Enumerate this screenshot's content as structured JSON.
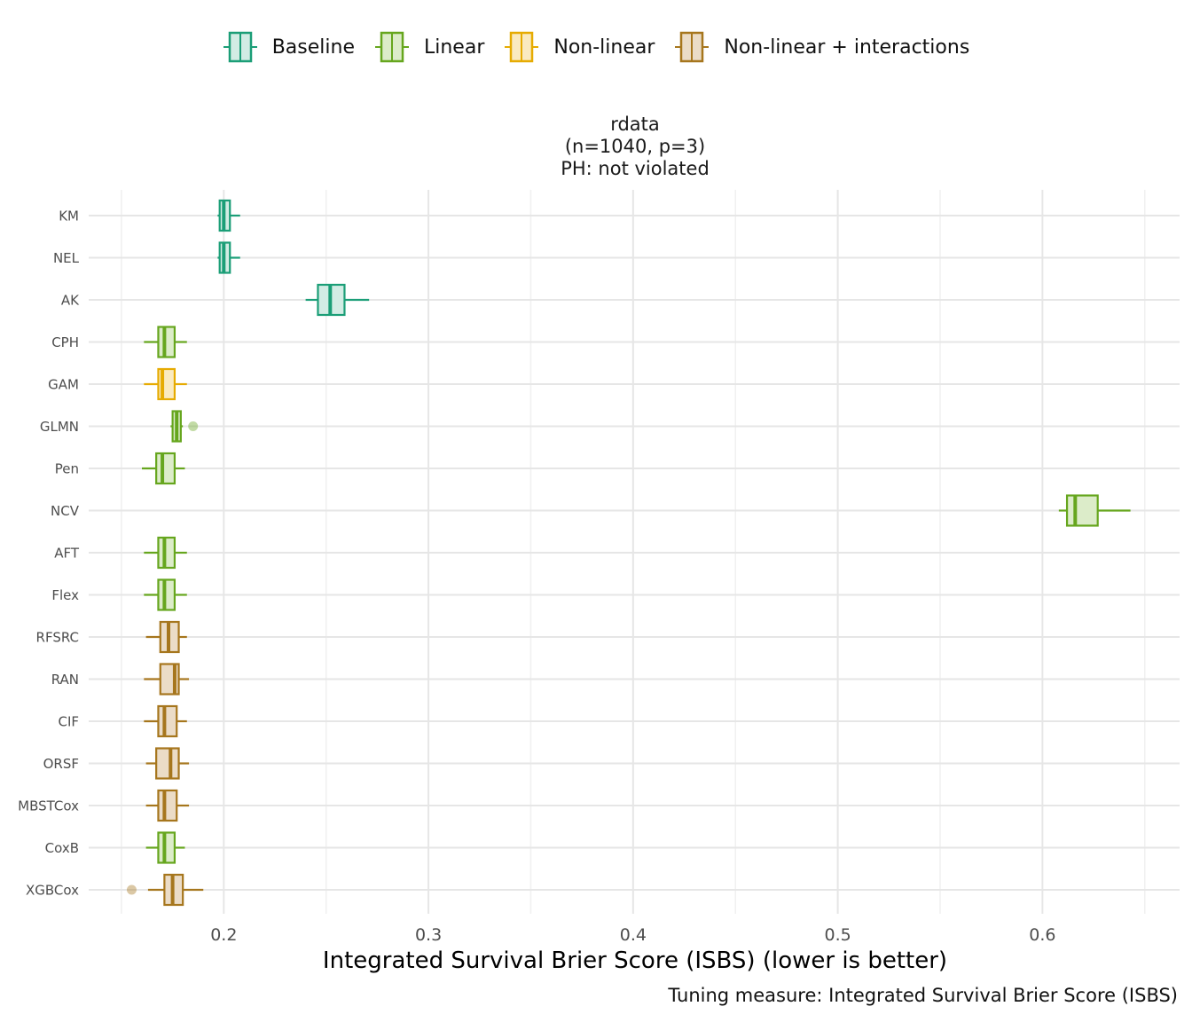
{
  "legend": {
    "items": [
      {
        "label": "Baseline",
        "color": "#1b9e77",
        "fill": "#d2ece4"
      },
      {
        "label": "Linear",
        "color": "#66a61e",
        "fill": "#dcecc9"
      },
      {
        "label": "Non-linear",
        "color": "#e6ab02",
        "fill": "#faeac0"
      },
      {
        "label": "Non-linear + interactions",
        "color": "#a6761d",
        "fill": "#ebdcc7"
      }
    ]
  },
  "facet": {
    "line1": "rdata",
    "line2": "(n=1040, p=3)",
    "line3": "PH: not violated"
  },
  "chart_data": {
    "type": "boxplot",
    "orientation": "horizontal",
    "xlabel": "Integrated Survival Brier Score (ISBS) (lower is better)",
    "caption": "Tuning measure: Integrated Survival Brier Score (ISBS)",
    "xlim": [
      0.134,
      0.667
    ],
    "xticks": [
      0.2,
      0.3,
      0.4,
      0.5,
      0.6
    ],
    "xtick_labels": [
      "0.2",
      "0.3",
      "0.4",
      "0.5",
      "0.6"
    ],
    "grid": true,
    "legend_position": "top",
    "series": [
      {
        "name": "KM",
        "group": "Baseline",
        "min": 0.197,
        "q1": 0.198,
        "median": 0.2,
        "q3": 0.203,
        "max": 0.208,
        "outliers": []
      },
      {
        "name": "NEL",
        "group": "Baseline",
        "min": 0.197,
        "q1": 0.198,
        "median": 0.2,
        "q3": 0.203,
        "max": 0.208,
        "outliers": []
      },
      {
        "name": "AK",
        "group": "Baseline",
        "min": 0.24,
        "q1": 0.246,
        "median": 0.252,
        "q3": 0.259,
        "max": 0.271,
        "outliers": []
      },
      {
        "name": "CPH",
        "group": "Linear",
        "min": 0.161,
        "q1": 0.168,
        "median": 0.171,
        "q3": 0.176,
        "max": 0.182,
        "outliers": []
      },
      {
        "name": "GAM",
        "group": "Non-linear",
        "min": 0.161,
        "q1": 0.168,
        "median": 0.17,
        "q3": 0.176,
        "max": 0.182,
        "outliers": []
      },
      {
        "name": "GLMN",
        "group": "Linear",
        "min": 0.174,
        "q1": 0.175,
        "median": 0.177,
        "q3": 0.179,
        "max": 0.18,
        "outliers": [
          0.185
        ]
      },
      {
        "name": "Pen",
        "group": "Linear",
        "min": 0.16,
        "q1": 0.167,
        "median": 0.17,
        "q3": 0.176,
        "max": 0.181,
        "outliers": []
      },
      {
        "name": "NCV",
        "group": "Linear",
        "min": 0.608,
        "q1": 0.612,
        "median": 0.616,
        "q3": 0.627,
        "max": 0.643,
        "outliers": []
      },
      {
        "name": "AFT",
        "group": "Linear",
        "min": 0.161,
        "q1": 0.168,
        "median": 0.171,
        "q3": 0.176,
        "max": 0.182,
        "outliers": []
      },
      {
        "name": "Flex",
        "group": "Linear",
        "min": 0.161,
        "q1": 0.168,
        "median": 0.171,
        "q3": 0.176,
        "max": 0.182,
        "outliers": []
      },
      {
        "name": "RFSRC",
        "group": "Non-linear + interactions",
        "min": 0.162,
        "q1": 0.169,
        "median": 0.173,
        "q3": 0.178,
        "max": 0.182,
        "outliers": []
      },
      {
        "name": "RAN",
        "group": "Non-linear + interactions",
        "min": 0.161,
        "q1": 0.169,
        "median": 0.176,
        "q3": 0.178,
        "max": 0.183,
        "outliers": []
      },
      {
        "name": "CIF",
        "group": "Non-linear + interactions",
        "min": 0.161,
        "q1": 0.168,
        "median": 0.171,
        "q3": 0.177,
        "max": 0.182,
        "outliers": []
      },
      {
        "name": "ORSF",
        "group": "Non-linear + interactions",
        "min": 0.162,
        "q1": 0.167,
        "median": 0.174,
        "q3": 0.178,
        "max": 0.183,
        "outliers": []
      },
      {
        "name": "MBSTCox",
        "group": "Non-linear + interactions",
        "min": 0.162,
        "q1": 0.168,
        "median": 0.171,
        "q3": 0.177,
        "max": 0.183,
        "outliers": []
      },
      {
        "name": "CoxB",
        "group": "Linear",
        "min": 0.162,
        "q1": 0.168,
        "median": 0.171,
        "q3": 0.176,
        "max": 0.181,
        "outliers": []
      },
      {
        "name": "XGBCox",
        "group": "Non-linear + interactions",
        "min": 0.163,
        "q1": 0.171,
        "median": 0.175,
        "q3": 0.18,
        "max": 0.19,
        "outliers": [
          0.155
        ]
      }
    ]
  }
}
